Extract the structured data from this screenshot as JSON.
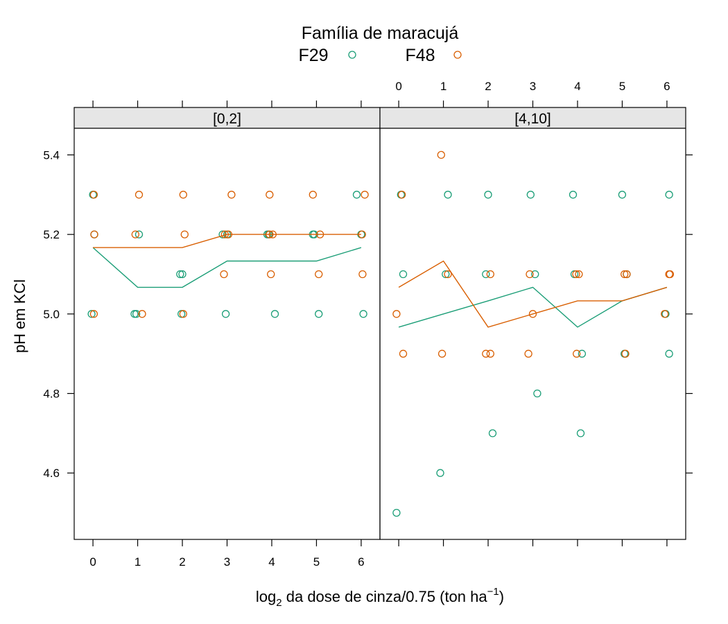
{
  "legend": {
    "title": "Família de maracujá",
    "entries": [
      {
        "name": "F29",
        "color": "#1b9e77"
      },
      {
        "name": "F48",
        "color": "#d95f02"
      }
    ]
  },
  "axes": {
    "ylabel": "pH em KCl",
    "xlabel_prefix": "log",
    "xlabel_sub": "2",
    "xlabel_mid": " da dose de cinza/0.75 (ton ha",
    "xlabel_sup": "−1",
    "xlabel_suffix": ")"
  },
  "chart_data": {
    "type": "scatter",
    "title": "",
    "xlim": [
      -0.42,
      6.42
    ],
    "ylim": [
      4.433,
      5.467
    ],
    "x_ticks": [
      "0",
      "1",
      "2",
      "3",
      "4",
      "5",
      "6"
    ],
    "y_ticks": [
      "4.6",
      "4.8",
      "5.0",
      "5.2",
      "5.4"
    ],
    "grid": false,
    "legend_position": "top",
    "panels": [
      {
        "strip": "[0,2]",
        "series": [
          {
            "name": "F29",
            "points": [
              [
                0,
                5.3
              ],
              [
                0.03,
                5.2
              ],
              [
                -0.03,
                5.0
              ],
              [
                0.93,
                5.0
              ],
              [
                0.97,
                5.0
              ],
              [
                1.03,
                5.2
              ],
              [
                1.95,
                5.1
              ],
              [
                2.0,
                5.1
              ],
              [
                1.98,
                5.0
              ],
              [
                2.9,
                5.2
              ],
              [
                3.0,
                5.2
              ],
              [
                2.97,
                5.0
              ],
              [
                3.9,
                5.2
              ],
              [
                3.93,
                5.2
              ],
              [
                4.07,
                5.0
              ],
              [
                4.92,
                5.2
              ],
              [
                4.95,
                5.2
              ],
              [
                5.05,
                5.0
              ],
              [
                5.9,
                5.3
              ],
              [
                6.0,
                5.2
              ],
              [
                6.05,
                5.0
              ]
            ],
            "line": [
              [
                0,
                5.167
              ],
              [
                1,
                5.067
              ],
              [
                2,
                5.067
              ],
              [
                3,
                5.133
              ],
              [
                4,
                5.133
              ],
              [
                5,
                5.133
              ],
              [
                6,
                5.167
              ]
            ]
          },
          {
            "name": "F48",
            "points": [
              [
                0.02,
                5.3
              ],
              [
                0.03,
                5.2
              ],
              [
                0.02,
                5.0
              ],
              [
                1.03,
                5.3
              ],
              [
                0.95,
                5.2
              ],
              [
                1.1,
                5.0
              ],
              [
                2.02,
                5.3
              ],
              [
                2.05,
                5.2
              ],
              [
                2.02,
                5.0
              ],
              [
                3.1,
                5.3
              ],
              [
                2.95,
                5.2
              ],
              [
                3.03,
                5.2
              ],
              [
                2.93,
                5.1
              ],
              [
                3.95,
                5.3
              ],
              [
                3.95,
                5.2
              ],
              [
                4.02,
                5.2
              ],
              [
                3.98,
                5.1
              ],
              [
                4.92,
                5.3
              ],
              [
                5.08,
                5.2
              ],
              [
                5.05,
                5.1
              ],
              [
                6.08,
                5.3
              ],
              [
                6.02,
                5.2
              ],
              [
                6.03,
                5.1
              ]
            ],
            "line": [
              [
                0,
                5.167
              ],
              [
                1,
                5.167
              ],
              [
                2,
                5.167
              ],
              [
                3,
                5.2
              ],
              [
                4,
                5.2
              ],
              [
                5,
                5.2
              ],
              [
                6,
                5.2
              ]
            ]
          }
        ]
      },
      {
        "strip": "[4,10]",
        "series": [
          {
            "name": "F29",
            "points": [
              [
                0.05,
                5.3
              ],
              [
                0.1,
                5.1
              ],
              [
                -0.05,
                4.5
              ],
              [
                1.1,
                5.3
              ],
              [
                1.05,
                5.1
              ],
              [
                0.93,
                4.6
              ],
              [
                2.0,
                5.3
              ],
              [
                1.95,
                5.1
              ],
              [
                2.1,
                4.7
              ],
              [
                2.95,
                5.3
              ],
              [
                3.05,
                5.1
              ],
              [
                3.1,
                4.8
              ],
              [
                3.9,
                5.3
              ],
              [
                3.93,
                5.1
              ],
              [
                4.1,
                4.9
              ],
              [
                4.07,
                4.7
              ],
              [
                5.0,
                5.3
              ],
              [
                5.1,
                5.1
              ],
              [
                5.05,
                4.9
              ],
              [
                6.05,
                5.3
              ],
              [
                5.97,
                5.0
              ],
              [
                6.05,
                4.9
              ]
            ],
            "line": [
              [
                0,
                4.967
              ],
              [
                1,
                5.0
              ],
              [
                2,
                5.033
              ],
              [
                3,
                5.067
              ],
              [
                4,
                4.967
              ],
              [
                5,
                5.033
              ],
              [
                6,
                5.067
              ]
            ]
          },
          {
            "name": "F48",
            "points": [
              [
                0.07,
                5.3
              ],
              [
                -0.05,
                5.0
              ],
              [
                0.1,
                4.9
              ],
              [
                0.95,
                5.4
              ],
              [
                1.1,
                5.1
              ],
              [
                0.97,
                4.9
              ],
              [
                2.05,
                5.1
              ],
              [
                1.95,
                4.9
              ],
              [
                2.05,
                4.9
              ],
              [
                2.93,
                5.1
              ],
              [
                3.0,
                5.0
              ],
              [
                2.9,
                4.9
              ],
              [
                3.97,
                5.1
              ],
              [
                4.03,
                5.1
              ],
              [
                3.98,
                4.9
              ],
              [
                5.05,
                5.1
              ],
              [
                5.1,
                5.1
              ],
              [
                5.07,
                4.9
              ],
              [
                6.05,
                5.1
              ],
              [
                6.07,
                5.1
              ],
              [
                5.95,
                5.0
              ]
            ],
            "line": [
              [
                0,
                5.067
              ],
              [
                1,
                5.133
              ],
              [
                2,
                4.967
              ],
              [
                3,
                5.0
              ],
              [
                4,
                5.033
              ],
              [
                5,
                5.033
              ],
              [
                6,
                5.067
              ]
            ]
          }
        ]
      }
    ]
  }
}
